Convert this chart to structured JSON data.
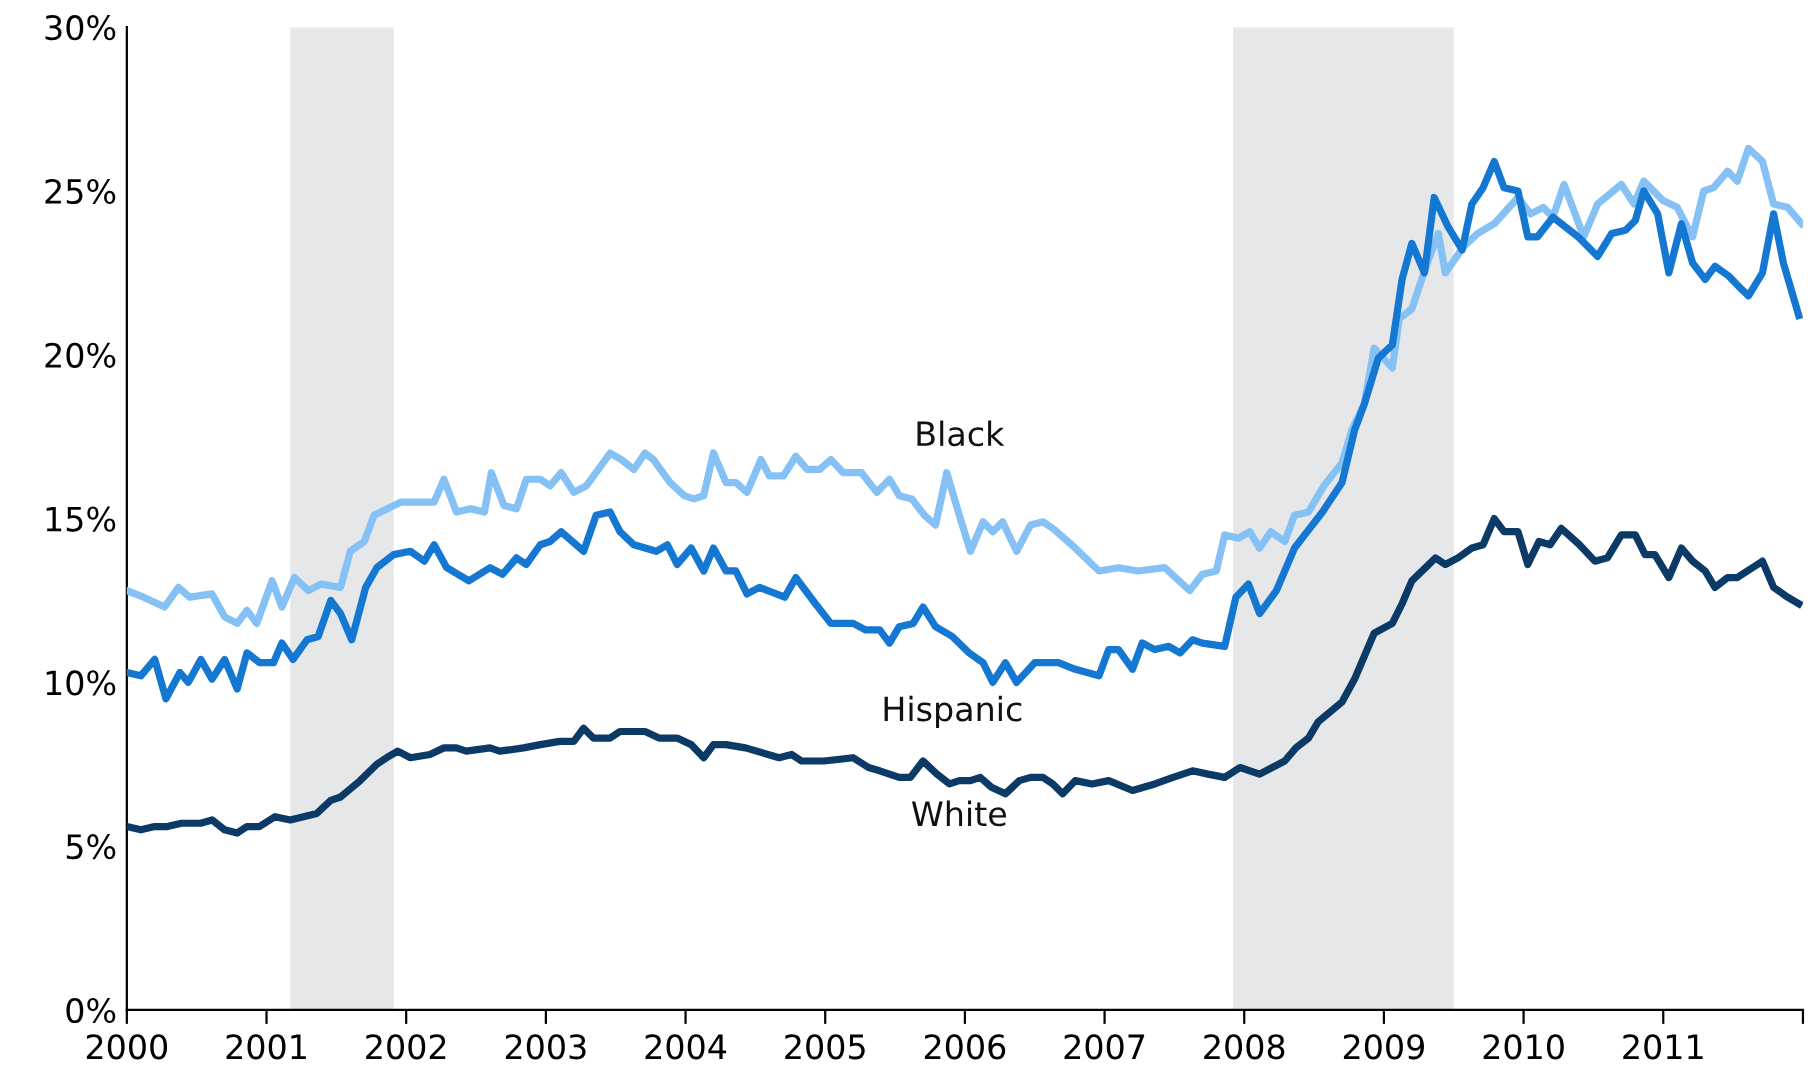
{
  "chart_data": {
    "type": "line",
    "xlim": [
      2000,
      2012
    ],
    "xticks": [
      2000,
      2001,
      2002,
      2003,
      2004,
      2005,
      2006,
      2007,
      2008,
      2009,
      2010,
      2011,
      {
        "value": 2012,
        "label": null
      }
    ],
    "ylim": [
      0,
      30
    ],
    "yticks": [
      {
        "value": 0,
        "label": "0%"
      },
      {
        "value": 5,
        "label": "5%"
      },
      {
        "value": 10,
        "label": "10%"
      },
      {
        "value": 15,
        "label": "15%"
      },
      {
        "value": 20,
        "label": "20%"
      },
      {
        "value": 25,
        "label": "25%"
      },
      {
        "value": 30,
        "label": "30%"
      }
    ],
    "grid": false,
    "legend": false,
    "marker": "none",
    "line_style": "solid",
    "bands": [
      {
        "axis": "x",
        "from": 2001.17,
        "to": 2001.91,
        "color": "#e6e7e9"
      },
      {
        "axis": "x",
        "from": 2007.92,
        "to": 2009.5,
        "color": "#e6e7e9"
      }
    ],
    "series": [
      {
        "name": "Black",
        "color": "#85c1f5",
        "x": [
          2000.0,
          2000.12,
          2000.27,
          2000.37,
          2000.45,
          2000.61,
          2000.7,
          2000.79,
          2000.86,
          2000.93,
          2001.04,
          2001.11,
          2001.2,
          2001.3,
          2001.39,
          2001.53,
          2001.6,
          2001.7,
          2001.77,
          2001.96,
          2002.2,
          2002.27,
          2002.36,
          2002.46,
          2002.56,
          2002.61,
          2002.7,
          2002.79,
          2002.86,
          2002.96,
          2003.03,
          2003.11,
          2003.2,
          2003.29,
          2003.46,
          2003.54,
          2003.63,
          2003.71,
          2003.77,
          2003.89,
          2003.99,
          2004.06,
          2004.13,
          2004.2,
          2004.29,
          2004.36,
          2004.44,
          2004.54,
          2004.6,
          2004.7,
          2004.79,
          2004.87,
          2004.96,
          2005.04,
          2005.13,
          2005.26,
          2005.37,
          2005.46,
          2005.53,
          2005.62,
          2005.71,
          2005.79,
          2005.87,
          2005.96,
          2006.04,
          2006.13,
          2006.2,
          2006.27,
          2006.37,
          2006.47,
          2006.56,
          2006.63,
          2006.79,
          2006.96,
          2007.1,
          2007.24,
          2007.43,
          2007.61,
          2007.7,
          2007.8,
          2007.86,
          2007.96,
          2008.04,
          2008.11,
          2008.19,
          2008.29,
          2008.36,
          2008.46,
          2008.57,
          2008.7,
          2008.77,
          2008.86,
          2008.93,
          2009.06,
          2009.11,
          2009.2,
          2009.31,
          2009.39,
          2009.44,
          2009.57,
          2009.67,
          2009.79,
          2009.96,
          2010.05,
          2010.14,
          2010.21,
          2010.29,
          2010.43,
          2010.53,
          2010.7,
          2010.79,
          2010.86,
          2011.0,
          2011.1,
          2011.21,
          2011.29,
          2011.36,
          2011.46,
          2011.53,
          2011.61,
          2011.71,
          2011.79,
          2011.89,
          2011.99
        ],
        "values": [
          12.8,
          12.6,
          12.3,
          12.9,
          12.6,
          12.7,
          12.0,
          11.8,
          12.2,
          11.8,
          13.1,
          12.3,
          13.2,
          12.8,
          13.0,
          12.9,
          14.0,
          14.3,
          15.1,
          15.5,
          15.5,
          16.2,
          15.2,
          15.3,
          15.2,
          16.4,
          15.4,
          15.3,
          16.2,
          16.2,
          16.0,
          16.4,
          15.8,
          16.0,
          17.0,
          16.8,
          16.5,
          17.0,
          16.8,
          16.1,
          15.7,
          15.6,
          15.7,
          17.0,
          16.1,
          16.1,
          15.8,
          16.8,
          16.3,
          16.3,
          16.9,
          16.5,
          16.5,
          16.8,
          16.4,
          16.4,
          15.8,
          16.2,
          15.7,
          15.6,
          15.1,
          14.8,
          16.4,
          15.1,
          14.0,
          14.9,
          14.6,
          14.9,
          14.0,
          14.8,
          14.9,
          14.7,
          14.1,
          13.4,
          13.5,
          13.4,
          13.5,
          12.8,
          13.3,
          13.4,
          14.5,
          14.4,
          14.6,
          14.1,
          14.6,
          14.3,
          15.1,
          15.2,
          16.0,
          16.7,
          17.7,
          18.5,
          20.2,
          19.6,
          21.1,
          21.4,
          22.8,
          23.7,
          22.5,
          23.3,
          23.7,
          24.0,
          24.8,
          24.3,
          24.5,
          24.2,
          25.2,
          23.6,
          24.6,
          25.2,
          24.6,
          25.3,
          24.7,
          24.5,
          23.6,
          25.0,
          25.1,
          25.6,
          25.3,
          26.3,
          25.9,
          24.6,
          24.5,
          24.0
        ]
      },
      {
        "name": "Hispanic",
        "color": "#1477d2",
        "x": [
          2000.0,
          2000.1,
          2000.2,
          2000.28,
          2000.38,
          2000.44,
          2000.53,
          2000.61,
          2000.7,
          2000.79,
          2000.86,
          2000.95,
          2001.05,
          2001.11,
          2001.19,
          2001.29,
          2001.37,
          2001.46,
          2001.53,
          2001.61,
          2001.71,
          2001.79,
          2001.91,
          2002.03,
          2002.13,
          2002.2,
          2002.29,
          2002.45,
          2002.6,
          2002.69,
          2002.79,
          2002.86,
          2002.96,
          2003.03,
          2003.11,
          2003.27,
          2003.36,
          2003.46,
          2003.53,
          2003.63,
          2003.79,
          2003.87,
          2003.94,
          2004.04,
          2004.13,
          2004.2,
          2004.29,
          2004.36,
          2004.44,
          2004.53,
          2004.71,
          2004.79,
          2004.93,
          2005.04,
          2005.2,
          2005.29,
          2005.39,
          2005.46,
          2005.53,
          2005.63,
          2005.7,
          2005.79,
          2005.91,
          2006.03,
          2006.13,
          2006.2,
          2006.29,
          2006.37,
          2006.5,
          2006.67,
          2006.79,
          2006.96,
          2007.03,
          2007.1,
          2007.2,
          2007.27,
          2007.36,
          2007.46,
          2007.54,
          2007.63,
          2007.7,
          2007.86,
          2007.94,
          2008.03,
          2008.11,
          2008.23,
          2008.36,
          2008.56,
          2008.7,
          2008.79,
          2008.86,
          2008.96,
          2009.06,
          2009.13,
          2009.2,
          2009.29,
          2009.36,
          2009.46,
          2009.56,
          2009.63,
          2009.71,
          2009.79,
          2009.86,
          2009.96,
          2010.03,
          2010.1,
          2010.21,
          2010.39,
          2010.53,
          2010.63,
          2010.73,
          2010.8,
          2010.86,
          2010.96,
          2011.04,
          2011.13,
          2011.21,
          2011.3,
          2011.37,
          2011.47,
          2011.56,
          2011.61,
          2011.71,
          2011.79,
          2011.86,
          2011.97
        ],
        "values": [
          10.3,
          10.2,
          10.7,
          9.5,
          10.3,
          10.0,
          10.7,
          10.1,
          10.7,
          9.8,
          10.9,
          10.6,
          10.6,
          11.2,
          10.7,
          11.3,
          11.4,
          12.5,
          12.1,
          11.3,
          12.9,
          13.5,
          13.9,
          14.0,
          13.7,
          14.2,
          13.5,
          13.1,
          13.5,
          13.3,
          13.8,
          13.6,
          14.2,
          14.3,
          14.6,
          14.0,
          15.1,
          15.2,
          14.6,
          14.2,
          14.0,
          14.2,
          13.6,
          14.1,
          13.4,
          14.1,
          13.4,
          13.4,
          12.7,
          12.9,
          12.6,
          13.2,
          12.4,
          11.8,
          11.8,
          11.6,
          11.6,
          11.2,
          11.7,
          11.8,
          12.3,
          11.7,
          11.4,
          10.9,
          10.6,
          10.0,
          10.6,
          10.0,
          10.6,
          10.6,
          10.4,
          10.2,
          11.0,
          11.0,
          10.4,
          11.2,
          11.0,
          11.1,
          10.9,
          11.3,
          11.2,
          11.1,
          12.6,
          13.0,
          12.1,
          12.8,
          14.1,
          15.2,
          16.1,
          17.7,
          18.5,
          19.9,
          20.3,
          22.3,
          23.4,
          22.5,
          24.8,
          23.9,
          23.2,
          24.6,
          25.1,
          25.9,
          25.1,
          25.0,
          23.6,
          23.6,
          24.2,
          23.6,
          23.0,
          23.7,
          23.8,
          24.1,
          25.0,
          24.3,
          22.5,
          24.0,
          22.8,
          22.3,
          22.7,
          22.4,
          22.0,
          21.8,
          22.5,
          24.3,
          22.8,
          21.2
        ]
      },
      {
        "name": "White",
        "color": "#0b3a66",
        "x": [
          2000.0,
          2000.1,
          2000.2,
          2000.29,
          2000.39,
          2000.53,
          2000.61,
          2000.7,
          2000.79,
          2000.86,
          2000.95,
          2001.06,
          2001.17,
          2001.36,
          2001.46,
          2001.53,
          2001.67,
          2001.79,
          2001.86,
          2001.94,
          2002.03,
          2002.17,
          2002.27,
          2002.36,
          2002.43,
          2002.6,
          2002.67,
          2002.84,
          2002.96,
          2003.1,
          2003.2,
          2003.27,
          2003.34,
          2003.46,
          2003.53,
          2003.71,
          2003.81,
          2003.94,
          2004.04,
          2004.13,
          2004.2,
          2004.29,
          2004.43,
          2004.67,
          2004.76,
          2004.83,
          2004.99,
          2005.2,
          2005.31,
          2005.39,
          2005.53,
          2005.61,
          2005.7,
          2005.8,
          2005.89,
          2005.96,
          2006.04,
          2006.11,
          2006.19,
          2006.29,
          2006.39,
          2006.47,
          2006.56,
          2006.63,
          2006.7,
          2006.79,
          2006.91,
          2007.03,
          2007.2,
          2007.36,
          2007.49,
          2007.63,
          2007.74,
          2007.86,
          2007.97,
          2008.11,
          2008.29,
          2008.37,
          2008.46,
          2008.53,
          2008.7,
          2008.79,
          2008.93,
          2009.06,
          2009.13,
          2009.2,
          2009.37,
          2009.44,
          2009.53,
          2009.63,
          2009.71,
          2009.79,
          2009.86,
          2009.96,
          2010.03,
          2010.11,
          2010.19,
          2010.27,
          2010.4,
          2010.51,
          2010.6,
          2010.7,
          2010.8,
          2010.87,
          2010.94,
          2011.04,
          2011.13,
          2011.21,
          2011.3,
          2011.37,
          2011.46,
          2011.53,
          2011.71,
          2011.79,
          2011.89,
          2011.97
        ],
        "values": [
          5.6,
          5.5,
          5.6,
          5.6,
          5.7,
          5.7,
          5.8,
          5.5,
          5.4,
          5.6,
          5.6,
          5.9,
          5.8,
          6.0,
          6.4,
          6.5,
          7.0,
          7.5,
          7.7,
          7.9,
          7.7,
          7.8,
          8.0,
          8.0,
          7.9,
          8.0,
          7.9,
          8.0,
          8.1,
          8.2,
          8.2,
          8.6,
          8.3,
          8.3,
          8.5,
          8.5,
          8.3,
          8.3,
          8.1,
          7.7,
          8.1,
          8.1,
          8.0,
          7.7,
          7.8,
          7.6,
          7.6,
          7.7,
          7.4,
          7.3,
          7.1,
          7.1,
          7.6,
          7.2,
          6.9,
          7.0,
          7.0,
          7.1,
          6.8,
          6.6,
          7.0,
          7.1,
          7.1,
          6.9,
          6.6,
          7.0,
          6.9,
          7.0,
          6.7,
          6.9,
          7.1,
          7.3,
          7.2,
          7.1,
          7.4,
          7.2,
          7.6,
          8.0,
          8.3,
          8.8,
          9.4,
          10.1,
          11.5,
          11.8,
          12.4,
          13.1,
          13.8,
          13.6,
          13.8,
          14.1,
          14.2,
          15.0,
          14.6,
          14.6,
          13.6,
          14.3,
          14.2,
          14.7,
          14.2,
          13.7,
          13.8,
          14.5,
          14.5,
          13.9,
          13.9,
          13.2,
          14.1,
          13.7,
          13.4,
          12.9,
          13.2,
          13.2,
          13.7,
          12.9,
          12.6,
          12.4
        ]
      }
    ]
  }
}
